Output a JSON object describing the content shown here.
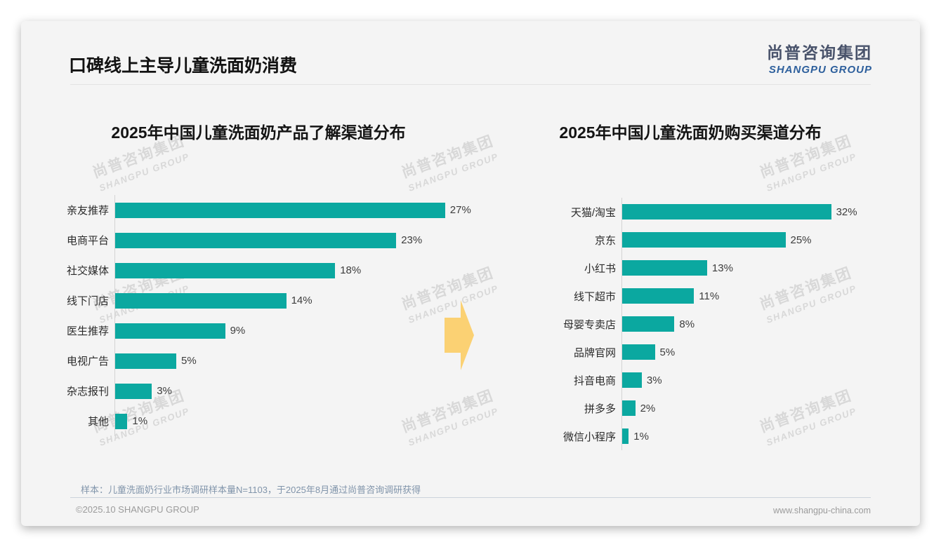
{
  "page": {
    "title": "口碑线上主导儿童洗面奶消费",
    "logo": {
      "cn": "尚普咨询集团",
      "en": "SHANGPU GROUP"
    },
    "watermark": {
      "cn": "尚普咨询集团",
      "en": "SHANGPU GROUP"
    },
    "sample_note": "样本：儿童洗面奶行业市场调研样本量N=1103，于2025年8月通过尚普咨询调研获得",
    "footer": {
      "left": "©2025.10 SHANGPU GROUP",
      "right": "www.shangpu-china.com"
    }
  },
  "colors": {
    "bar": "#0BA8A0",
    "arrow": "#FBD173",
    "logo_cn": "#49536B",
    "logo_en": "#2D5F9C",
    "card_bg": "#f4f4f4"
  },
  "chart_data": [
    {
      "type": "bar",
      "orientation": "horizontal",
      "title": "2025年中国儿童洗面奶产品了解渠道分布",
      "categories": [
        "亲友推荐",
        "电商平台",
        "社交媒体",
        "线下门店",
        "医生推荐",
        "电视广告",
        "杂志报刊",
        "其他"
      ],
      "values": [
        27,
        23,
        18,
        14,
        9,
        5,
        3,
        1
      ],
      "unit": "%",
      "xlim": [
        0,
        30
      ],
      "grid": false,
      "value_labels": "outside-end"
    },
    {
      "type": "bar",
      "orientation": "horizontal",
      "title": "2025年中国儿童洗面奶购买渠道分布",
      "categories": [
        "天猫/淘宝",
        "京东",
        "小红书",
        "线下超市",
        "母婴专卖店",
        "品牌官网",
        "抖音电商",
        "拼多多",
        "微信小程序"
      ],
      "values": [
        32,
        25,
        13,
        11,
        8,
        5,
        3,
        2,
        1
      ],
      "unit": "%",
      "xlim": [
        0,
        35
      ],
      "grid": false,
      "value_labels": "outside-end"
    }
  ]
}
